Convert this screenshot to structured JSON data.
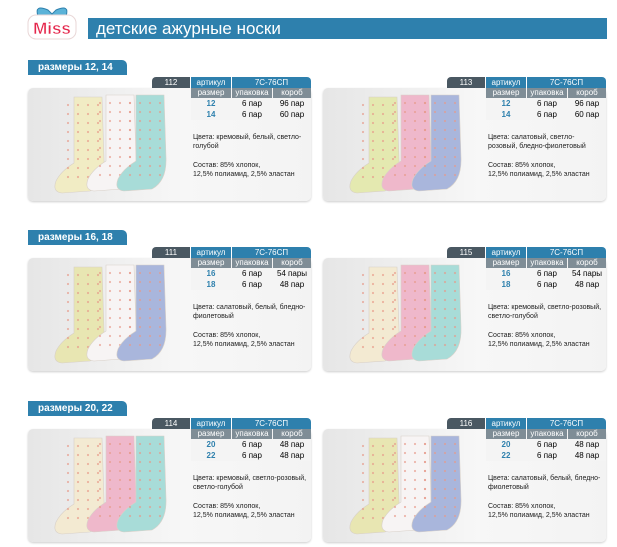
{
  "brand": {
    "logo_text": "Miss"
  },
  "title": "детские ажурные носки",
  "colors": {
    "accent": "#2e80ad",
    "dark_tab": "#4a5862",
    "table_header": "#7f8d96"
  },
  "labels": {
    "article": "артикул",
    "size": "размер",
    "pack": "упаковка",
    "box": "короб",
    "colors_prefix": "Цвета:",
    "composition": "Состав: 85% хлопок,",
    "composition2": "12,5% полиамид, 2,5% эластан"
  },
  "sections": [
    {
      "label": "размеры 12, 14",
      "cards": [
        {
          "num": "112",
          "code": "7С-76СП",
          "rows": [
            [
              "12",
              "6 пар",
              "96 пар"
            ],
            [
              "14",
              "6 пар",
              "60 пар"
            ]
          ],
          "colors_text": "Цвета: кремовый, белый, светло-голубой",
          "sock_colors": [
            "#f1ecc4",
            "#f7f4f4",
            "#a8dcd8"
          ]
        },
        {
          "num": "113",
          "code": "7С-76СП",
          "rows": [
            [
              "12",
              "6 пар",
              "96 пар"
            ],
            [
              "14",
              "6 пар",
              "60 пар"
            ]
          ],
          "colors_text": "Цвета: салатовый, светло-розовый, бледно-фиолетовый",
          "sock_colors": [
            "#e4e9b0",
            "#efb8cb",
            "#a9b6dc"
          ]
        }
      ]
    },
    {
      "label": "размеры 16, 18",
      "cards": [
        {
          "num": "111",
          "code": "7С-76СП",
          "rows": [
            [
              "16",
              "6 пар",
              "54 пары"
            ],
            [
              "18",
              "6 пар",
              "48 пар"
            ]
          ],
          "colors_text": "Цвета: салатовый, белый, бледно-фиолетовый",
          "sock_colors": [
            "#e8e6b2",
            "#f7f4f4",
            "#a9b6dc"
          ]
        },
        {
          "num": "115",
          "code": "7С-76СП",
          "rows": [
            [
              "16",
              "6 пар",
              "54 пары"
            ],
            [
              "18",
              "6 пар",
              "48 пар"
            ]
          ],
          "colors_text": "Цвета: кремовый, светло-розовый, светло-голубой",
          "sock_colors": [
            "#f3ead2",
            "#efb8cb",
            "#a8dcd8"
          ]
        }
      ]
    },
    {
      "label": "размеры 20, 22",
      "cards": [
        {
          "num": "114",
          "code": "7С-76СП",
          "rows": [
            [
              "20",
              "6 пар",
              "48 пар"
            ],
            [
              "22",
              "6 пар",
              "48 пар"
            ]
          ],
          "colors_text": "Цвета: кремовый, светло-розовый, светло-голубой",
          "sock_colors": [
            "#f3ead2",
            "#efb8cb",
            "#a8dcd8"
          ]
        },
        {
          "num": "116",
          "code": "7С-76СП",
          "rows": [
            [
              "20",
              "6 пар",
              "48 пар"
            ],
            [
              "22",
              "6 пар",
              "48 пар"
            ]
          ],
          "colors_text": "Цвета: салатовый, белый, бледно-фиолетовый",
          "sock_colors": [
            "#e8e6b2",
            "#f7f4f4",
            "#a9b6dc"
          ]
        }
      ]
    }
  ]
}
